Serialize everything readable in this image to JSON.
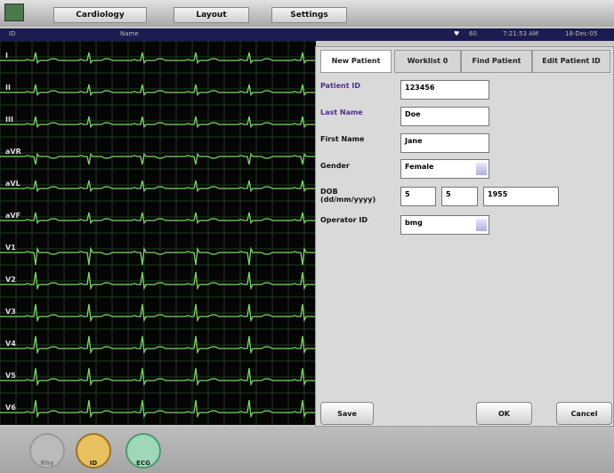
{
  "menu": {
    "tabs": [
      "Cardiology",
      "Layout",
      "Settings"
    ]
  },
  "status": {
    "id": "ID",
    "name": "Name",
    "heart_rate": "60",
    "time": "7:21:53 AM",
    "date": "18-Dec-05"
  },
  "ecg": {
    "leads": [
      "I",
      "II",
      "III",
      "aVR",
      "aVL",
      "aVF",
      "V1",
      "V2",
      "V3",
      "V4",
      "V5",
      "V6"
    ]
  },
  "form": {
    "tabs": [
      "New Patient",
      "Worklist 0",
      "Find Patient",
      "Edit Patient ID"
    ],
    "fields": [
      {
        "label": "Patient ID",
        "value": "123456"
      },
      {
        "label": "Last Name",
        "value": "Doe"
      },
      {
        "label": "First Name",
        "value": "Jane"
      },
      {
        "label": "Gender",
        "value": "Female"
      },
      {
        "label": "DOB (dd/mm/yyyy)",
        "values": [
          "5",
          "5",
          "1955"
        ]
      },
      {
        "label": "Operator ID",
        "value": "bmg"
      }
    ]
  },
  "buttons": [
    "Save",
    "OK",
    "Cancel"
  ],
  "dock": [
    "Rhy",
    "ID",
    "ECG"
  ]
}
